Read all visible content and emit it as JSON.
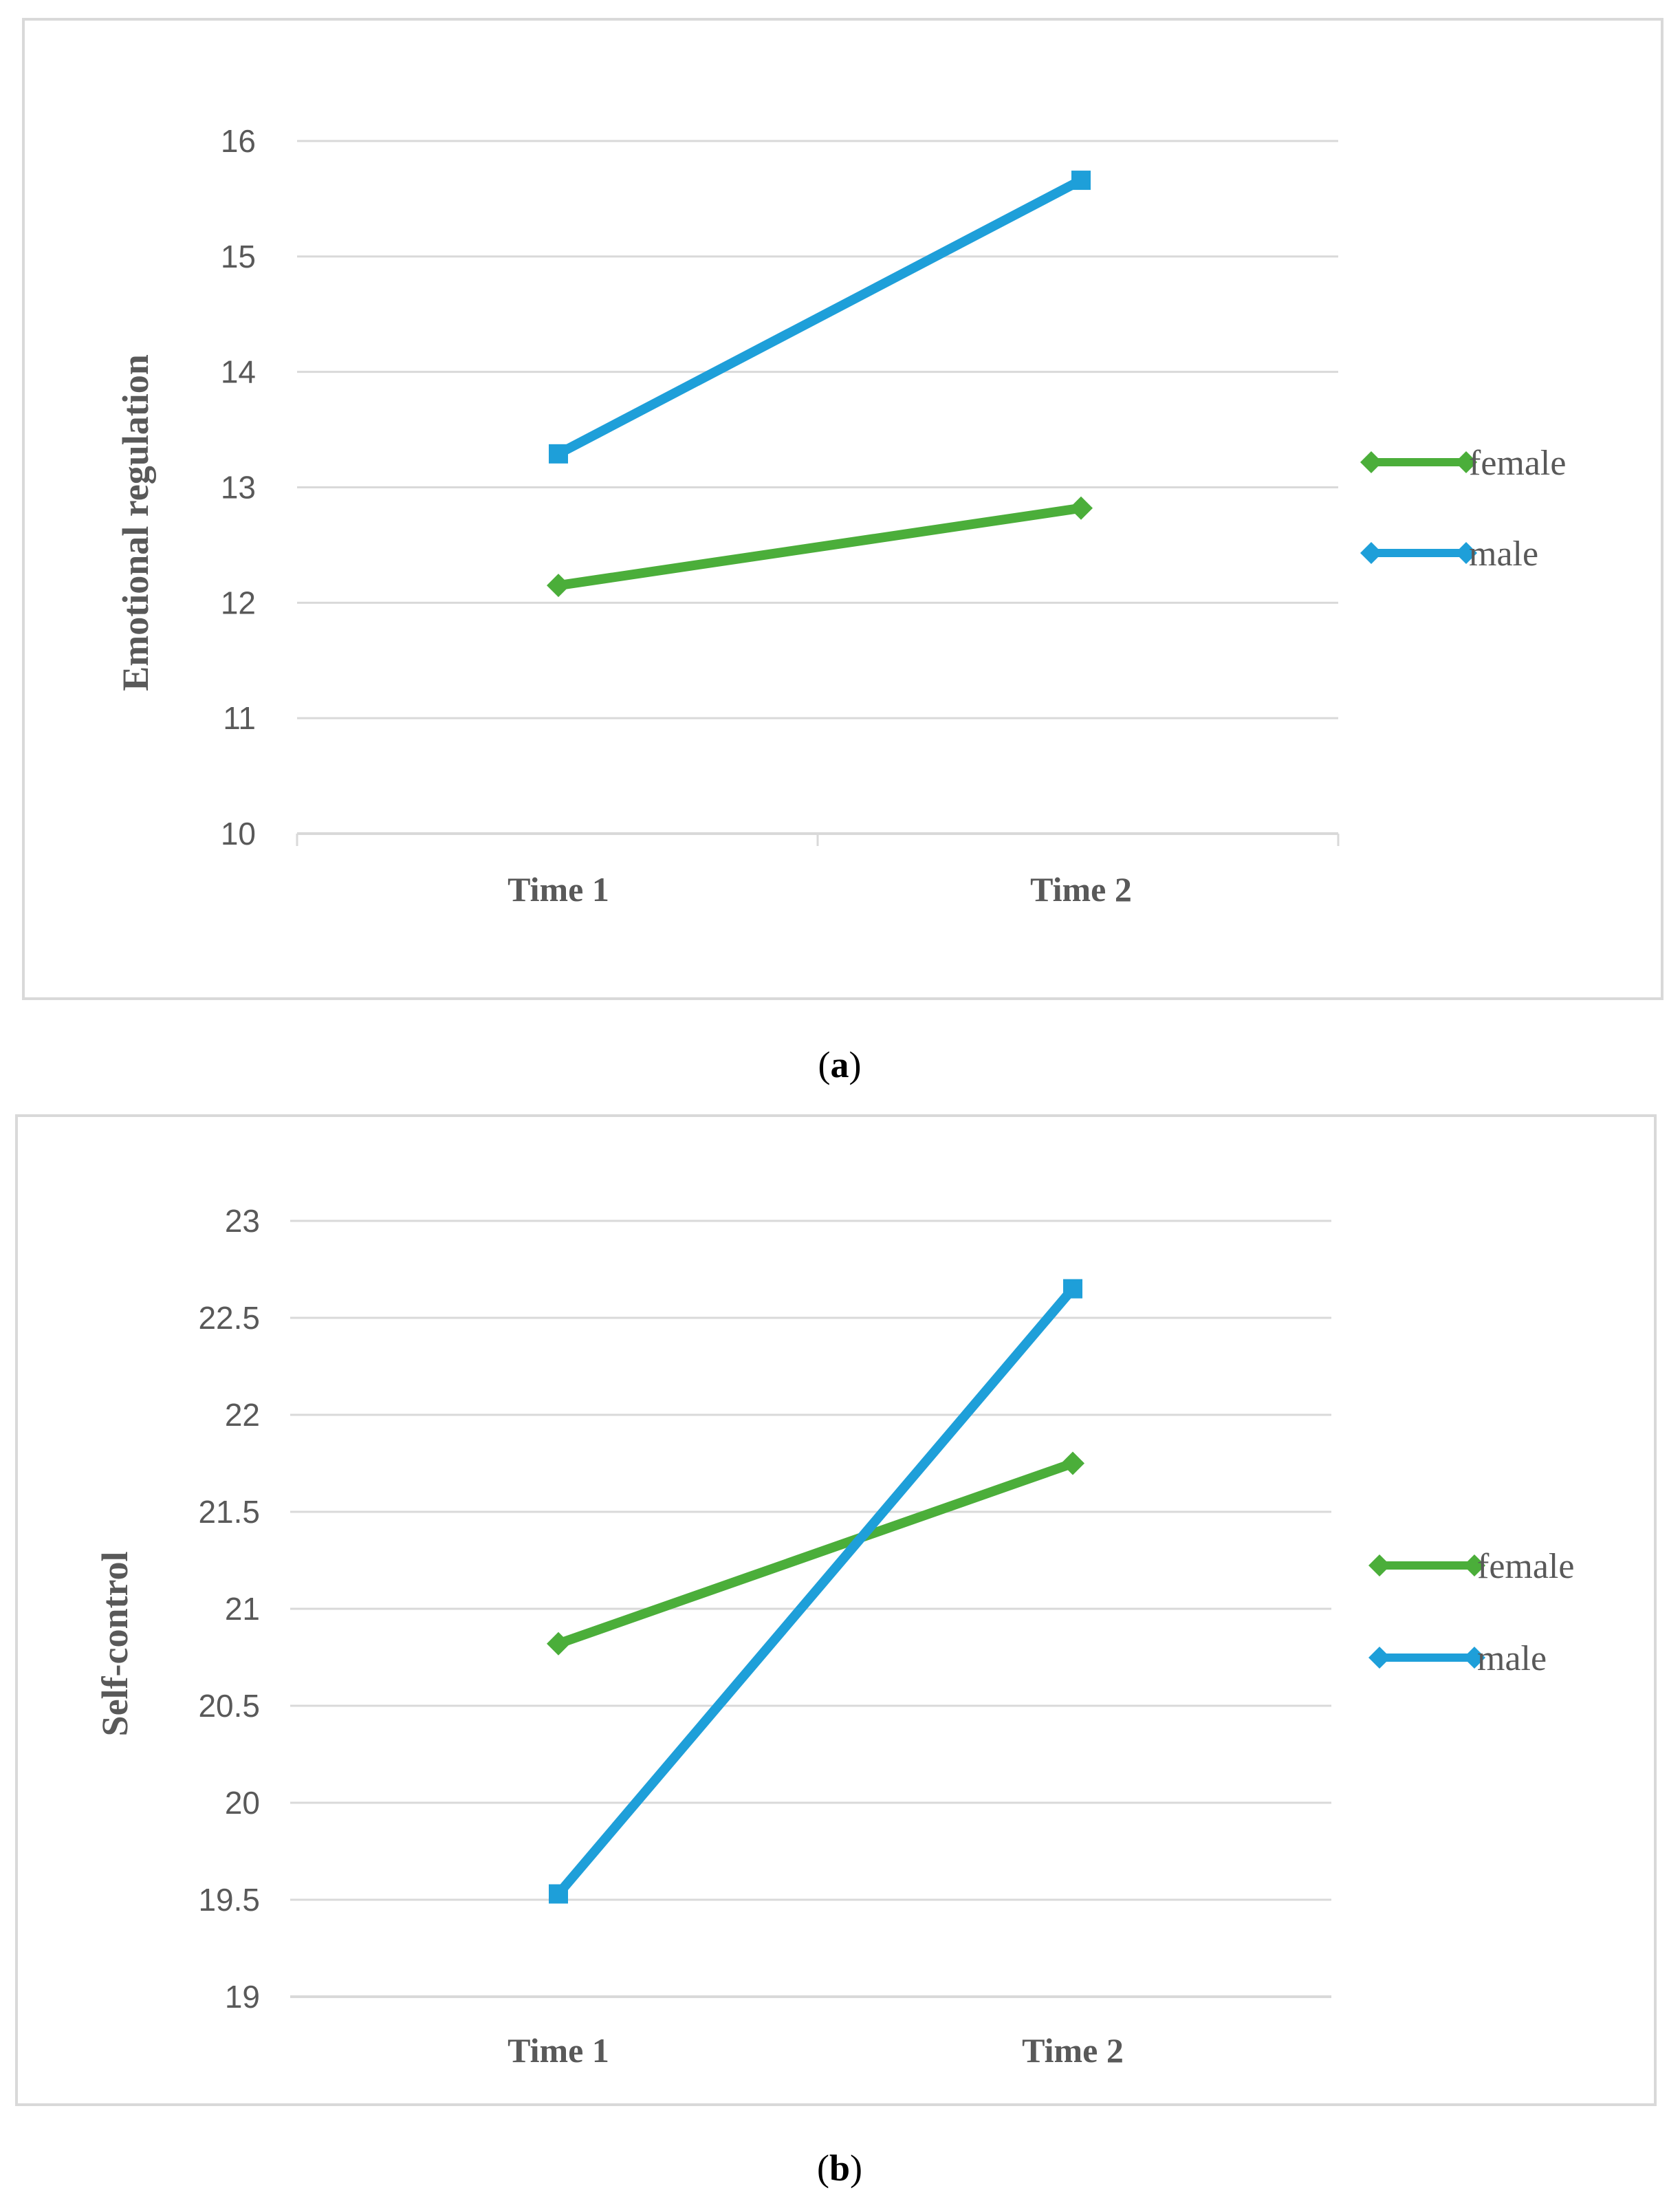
{
  "colors": {
    "female": "#4BAE3A",
    "male": "#1E9FD9",
    "grid": "#d9d9d9",
    "frame": "#d9d9d9",
    "text": "#595959"
  },
  "chart_data": [
    {
      "type": "line",
      "caption_letter": "a",
      "categories": [
        "Time 1",
        "Time 2"
      ],
      "ylabel": "Emotional regulation",
      "xlabel": "",
      "ylim": [
        10,
        16
      ],
      "yticks": [
        "10",
        "11",
        "12",
        "13",
        "14",
        "15",
        "16"
      ],
      "legend_position": "right",
      "series": [
        {
          "name": "female",
          "color_key": "female",
          "marker": "diamond",
          "values": [
            12.15,
            12.82
          ]
        },
        {
          "name": "male",
          "color_key": "male",
          "marker": "square",
          "values": [
            13.29,
            15.66
          ]
        }
      ]
    },
    {
      "type": "line",
      "caption_letter": "b",
      "categories": [
        "Time 1",
        "Time 2"
      ],
      "ylabel": "Self-control",
      "xlabel": "",
      "ylim": [
        19,
        23
      ],
      "yticks": [
        "19",
        "19.5",
        "20",
        "20.5",
        "21",
        "21.5",
        "22",
        "22.5",
        "23"
      ],
      "legend_position": "right",
      "series": [
        {
          "name": "female",
          "color_key": "female",
          "marker": "diamond",
          "values": [
            20.82,
            21.75
          ]
        },
        {
          "name": "male",
          "color_key": "male",
          "marker": "square",
          "values": [
            19.53,
            22.65
          ]
        }
      ]
    }
  ]
}
